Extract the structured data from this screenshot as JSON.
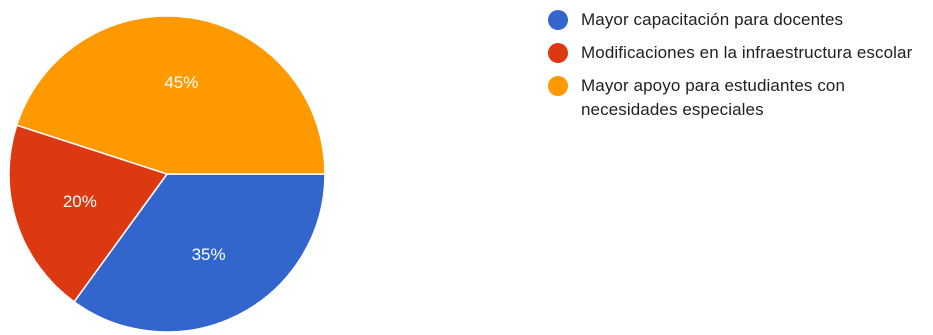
{
  "chart_data": {
    "type": "pie",
    "title": "",
    "start_angle_deg": 0,
    "direction": "clockwise",
    "legend_position": "right",
    "slices": [
      {
        "label": "Mayor capacitación para docentes",
        "value": 35,
        "display": "35%",
        "color": "#3366cc"
      },
      {
        "label": "Modificaciones en la infraestructura escolar",
        "value": 20,
        "display": "20%",
        "color": "#dc3912"
      },
      {
        "label": "Mayor apoyo para estudiantes con necesidades especiales",
        "value": 45,
        "display": "45%",
        "color": "#ff9900"
      }
    ]
  },
  "legend": {
    "items": [
      {
        "label": "Mayor capacitación para docentes",
        "color": "#3366cc"
      },
      {
        "label": "Modificaciones en la infraestructura escolar",
        "color": "#dc3912"
      },
      {
        "label": "Mayor apoyo para estudiantes con necesidades especiales",
        "color": "#ff9900"
      }
    ]
  }
}
